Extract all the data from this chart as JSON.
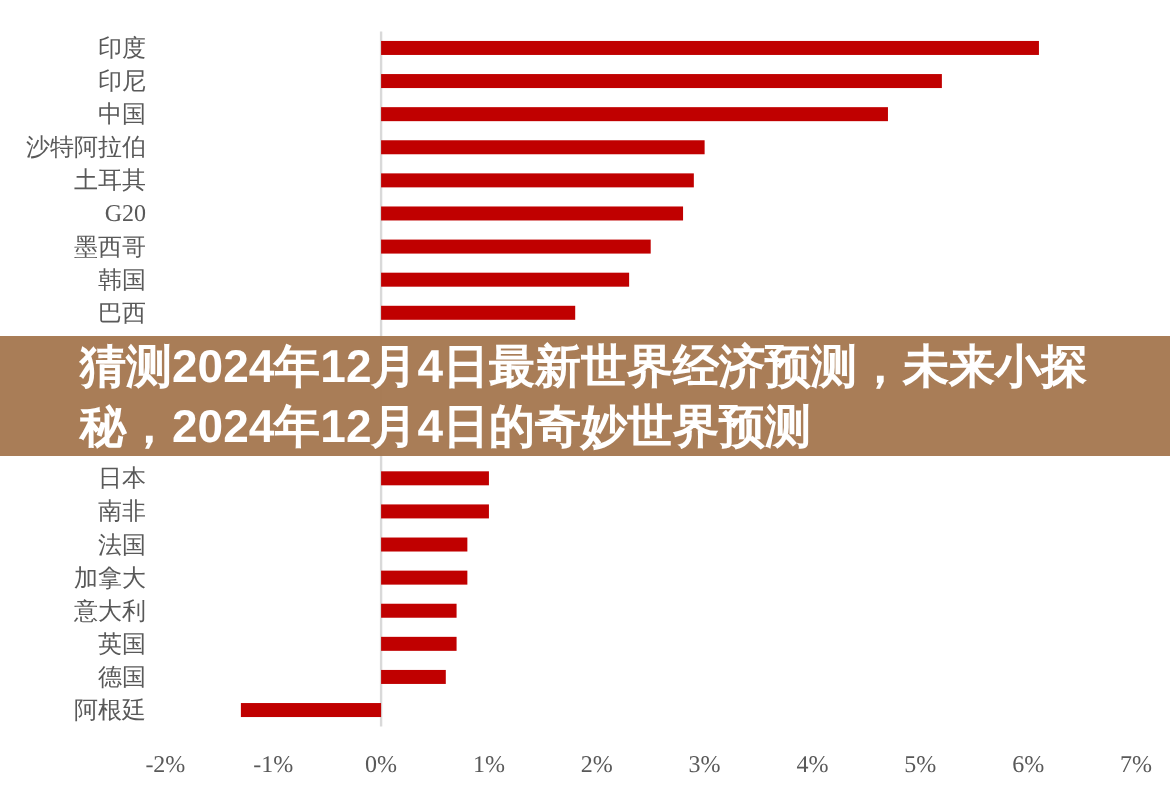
{
  "chart_data": {
    "type": "bar",
    "orientation": "horizontal",
    "title": "猜测2024年12月4日最新世界经济预测，未来小探秘，2024年12月4日的奇妙世界预测",
    "categories": [
      "印度",
      "印尼",
      "中国",
      "沙特阿拉伯",
      "土耳其",
      "G20",
      "墨西哥",
      "韩国",
      "巴西",
      null,
      null,
      null,
      null,
      "日本",
      "南非",
      "法国",
      "加拿大",
      "意大利",
      "英国",
      "德国",
      "阿根廷"
    ],
    "values": [
      6.1,
      5.2,
      4.7,
      3.0,
      2.9,
      2.8,
      2.5,
      2.3,
      1.8,
      null,
      null,
      null,
      null,
      1.0,
      1.0,
      0.8,
      0.8,
      0.7,
      0.7,
      0.6,
      -1.3
    ],
    "color": "#c00000",
    "xlim": [
      -2,
      7
    ],
    "xticks": [
      {
        "value": -2,
        "label": "-2%"
      },
      {
        "value": -1,
        "label": "-1%"
      },
      {
        "value": 0,
        "label": "0%"
      },
      {
        "value": 1,
        "label": "1%"
      },
      {
        "value": 2,
        "label": "2%"
      },
      {
        "value": 3,
        "label": "3%"
      },
      {
        "value": 4,
        "label": "4%"
      },
      {
        "value": 5,
        "label": "5%"
      },
      {
        "value": 6,
        "label": "6%"
      },
      {
        "value": 7,
        "label": "7%"
      }
    ]
  }
}
